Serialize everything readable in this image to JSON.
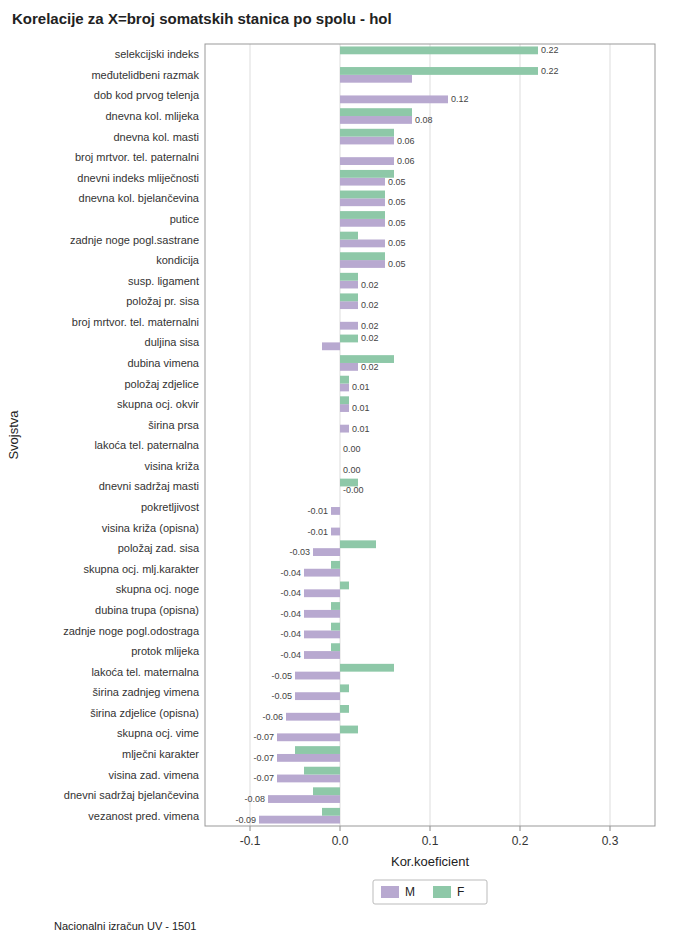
{
  "chart_data": {
    "type": "bar",
    "orientation": "horizontal",
    "title": "Korelacije za X=broj somatskih stanica po spolu - hol",
    "x_label": "Kor.koeficient",
    "y_label": "Svojstva",
    "footnote": "Nacionalni izračun UV - 1501",
    "xlim": [
      -0.15,
      0.35
    ],
    "xticks": [
      -0.1,
      {
        "value": 0.0,
        "label": "0.0"
      },
      0.1,
      0.2,
      0.3
    ],
    "grid": true,
    "legend": "bottom",
    "data_labels": true,
    "categories": [
      "vezanost pred. vimena",
      "dnevni sadržaj bjelančevina",
      "visina zad. vimena",
      "mlječni karakter",
      "skupna ocj. vime",
      "širina zdjelice (opisna)",
      "širina zadnjeg vimena",
      "lakoća tel. maternalna",
      "protok mlijeka",
      "zadnje noge pogl.odostraga",
      "dubina trupa (opisna)",
      "skupna ocj. noge",
      "skupna ocj. mlj.karakter",
      "položaj zad. sisa",
      "visina križa (opisna)",
      "pokretljivost",
      "dnevni sadržaj masti",
      "visina križa",
      "lakoća tel. paternalna",
      "širina prsa",
      "skupna ocj. okvir",
      "položaj zdjelice",
      "dubina vimena",
      "duljina sisa",
      "broj mrtvor. tel. maternalni",
      "položaj pr. sisa",
      "susp. ligament",
      "kondicija",
      "zadnje noge pogl.sastrane",
      "putice",
      "dnevna kol. bjelančevina",
      "dnevni indeks mliječnosti",
      "broj mrtvor. tel. paternalni",
      "dnevna kol. masti",
      "dnevna kol. mlijeka",
      "dob kod prvog telenja",
      "međutelidbeni razmak",
      "selekcijski indeks"
    ],
    "series": [
      {
        "name": "M",
        "color": "#b8a9d0",
        "values": [
          -0.09,
          -0.08,
          -0.07,
          -0.07,
          -0.07,
          -0.06,
          -0.05,
          -0.05,
          -0.04,
          -0.04,
          -0.04,
          -0.04,
          -0.04,
          -0.03,
          -0.01,
          -0.01,
          -0.0,
          0.0,
          0.0,
          0.01,
          0.01,
          0.01,
          0.02,
          -0.02,
          0.02,
          0.02,
          0.02,
          0.05,
          0.05,
          0.05,
          0.05,
          0.05,
          0.06,
          0.06,
          0.08,
          0.12,
          0.08,
          0.0
        ],
        "value_labels": [
          "-0.09",
          "-0.08",
          "-0.07",
          "-0.07",
          "-0.07",
          "-0.06",
          "-0.05",
          "-0.05",
          "-0.04",
          "-0.04",
          "-0.04",
          "-0.04",
          "-0.04",
          "-0.03",
          "-0.01",
          "-0.01",
          "-0.00",
          "0.00",
          "0.00",
          "0.01",
          "0.01",
          "0.01",
          "0.02",
          null,
          "0.02",
          "0.02",
          "0.02",
          "0.05",
          "0.05",
          "0.05",
          "0.05",
          "0.05",
          "0.06",
          "0.06",
          "0.08",
          "0.12",
          null,
          null
        ]
      },
      {
        "name": "F",
        "color": "#8ec8a8",
        "values": [
          -0.02,
          -0.03,
          -0.04,
          -0.05,
          0.02,
          0.01,
          0.01,
          0.06,
          -0.01,
          -0.01,
          -0.01,
          0.01,
          -0.01,
          0.04,
          -0.0,
          0.0,
          0.02,
          0.0,
          0.0,
          0.0,
          0.01,
          0.01,
          0.06,
          0.02,
          0.0,
          0.02,
          0.02,
          0.05,
          0.02,
          0.05,
          0.05,
          0.06,
          0.0,
          0.06,
          0.08,
          0.0,
          0.22,
          0.22
        ],
        "value_labels": [
          null,
          null,
          null,
          null,
          null,
          null,
          null,
          null,
          null,
          null,
          null,
          null,
          null,
          null,
          null,
          null,
          null,
          null,
          null,
          null,
          null,
          null,
          null,
          "0.02",
          null,
          null,
          null,
          null,
          null,
          null,
          null,
          null,
          null,
          null,
          null,
          null,
          "0.22",
          "0.22"
        ]
      }
    ]
  }
}
